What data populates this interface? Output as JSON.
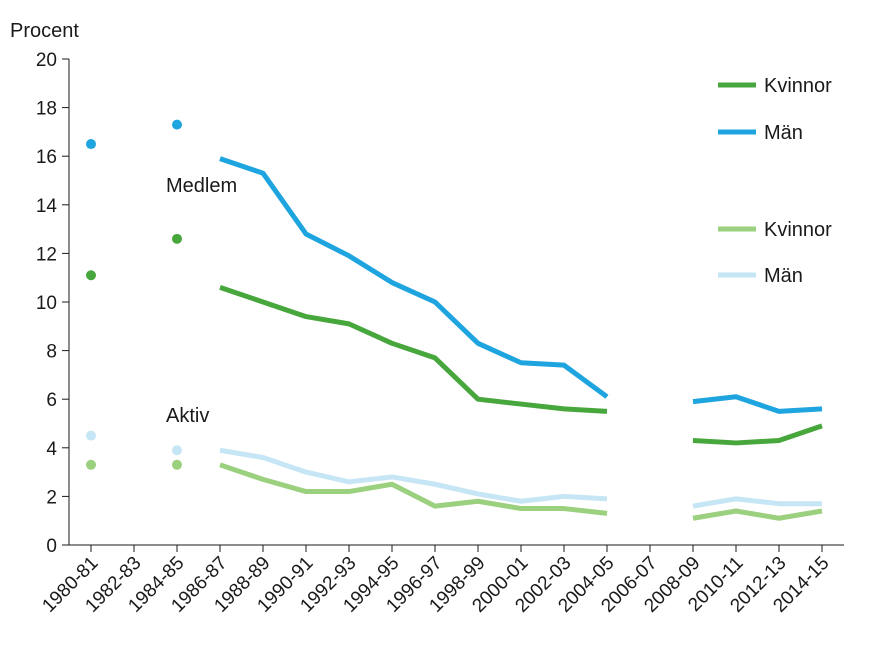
{
  "chart_data": {
    "type": "line",
    "ylabel": "Procent",
    "ylim": [
      0,
      20
    ],
    "yticks": [
      0,
      2,
      4,
      6,
      8,
      10,
      12,
      14,
      16,
      18,
      20
    ],
    "categories": [
      "1980-81",
      "1982-83",
      "1984-85",
      "1986-87",
      "1988-89",
      "1990-91",
      "1992-93",
      "1994-95",
      "1996-97",
      "1998-99",
      "2000-01",
      "2002-03",
      "2004-05",
      "2006-07",
      "2008-09",
      "2010-11",
      "2012-13",
      "2014-15"
    ],
    "annotations": {
      "medlem": "Medlem",
      "aktiv": "Aktiv"
    },
    "legend": {
      "placement": "right",
      "entries": [
        {
          "label": "Kvinnor",
          "color": "#47a73c"
        },
        {
          "label": "Män",
          "color": "#1ea5df"
        },
        {
          "label": "Kvinnor",
          "color": "#9bd07f"
        },
        {
          "label": "Män",
          "color": "#c6e6f6"
        }
      ]
    },
    "series": [
      {
        "name": "Kvinnor",
        "group": "Medlem",
        "color": "#47a73c",
        "values": [
          11.1,
          null,
          12.6,
          10.6,
          10.0,
          9.4,
          9.1,
          8.3,
          7.7,
          6.0,
          5.8,
          5.6,
          5.5,
          null,
          4.3,
          4.2,
          4.3,
          4.9
        ]
      },
      {
        "name": "Män",
        "group": "Medlem",
        "color": "#1ea5df",
        "values": [
          16.5,
          null,
          17.3,
          15.9,
          15.3,
          12.8,
          11.9,
          10.8,
          10.0,
          8.3,
          7.5,
          7.4,
          6.1,
          null,
          5.9,
          6.1,
          5.5,
          5.6
        ]
      },
      {
        "name": "Kvinnor",
        "group": "Aktiv",
        "color": "#9bd07f",
        "values": [
          3.3,
          null,
          3.3,
          3.3,
          2.7,
          2.2,
          2.2,
          2.5,
          1.6,
          1.8,
          1.5,
          1.5,
          1.3,
          null,
          1.1,
          1.4,
          1.1,
          1.4
        ]
      },
      {
        "name": "Män",
        "group": "Aktiv",
        "color": "#c6e6f6",
        "values": [
          4.5,
          null,
          3.9,
          3.9,
          3.6,
          3.0,
          2.6,
          2.8,
          2.5,
          2.1,
          1.8,
          2.0,
          1.9,
          null,
          1.6,
          1.9,
          1.7,
          1.7
        ]
      }
    ]
  }
}
